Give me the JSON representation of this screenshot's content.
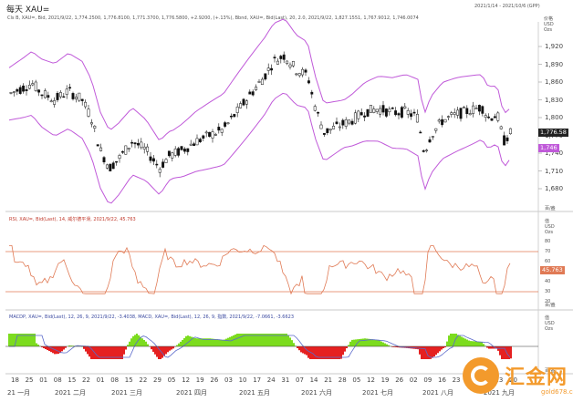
{
  "header": {
    "title": "每天 XAU=",
    "date_range": "2021/1/14 - 2021/10/6 (GPP)",
    "legend_line": "Cls B, XAU=, Bid, 2021/9/22, 1,774.2500, 1,776.8100, 1,771.3700, 1,776.5800, +2.9200, (+.13%), Bbnd, XAU=, Bid(Last), 20, 2.0, 2021/9/22, 1,827.1551, 1,767.9012, 1,746.0074"
  },
  "price_axis": {
    "unit": "价格\nUSD\nOzs",
    "ticks": [
      "1,920",
      "1,890",
      "1,860",
      "1,830",
      "1,800",
      "1,770",
      "1,740",
      "1,710",
      "1,680"
    ],
    "current_price": "1,776.58",
    "lower_band_label": "1,746",
    "footer": "百/盎"
  },
  "rsi": {
    "legend": "RSI, XAU=, Bid(Last), 14, 威尔德平滑, 2021/9/22, 45.763",
    "unit": "值\nUSD\nOzs",
    "ticks": [
      "80",
      "70",
      "60",
      "50",
      "40",
      "30",
      "20"
    ],
    "value_label": "45.763",
    "footer": "百/盎"
  },
  "macd": {
    "legend": "MACDP, XAU=, Bid(Last), 12, 26, 9, 2021/9/22, -3.4038, MACD, XAU=, Bid(Last), 12, 26, 9, 指数, 2021/9/22, -7.0661, -3.6623",
    "unit": "值\nUSD\nOzs",
    "footer": "百/盎"
  },
  "xaxis": {
    "days": [
      "18",
      "25",
      "01",
      "08",
      "15",
      "22",
      "01",
      "08",
      "15",
      "22",
      "29",
      "05",
      "12",
      "19",
      "26",
      "03",
      "10",
      "17",
      "24",
      "31",
      "07",
      "14",
      "21",
      "28",
      "05",
      "12",
      "19",
      "26",
      "02",
      "09",
      "16",
      "23",
      "30",
      "06",
      "13",
      "20"
    ],
    "months": [
      "21 一月",
      "2021 二月",
      "2021 三月",
      "2021 四月",
      "2021 五月",
      "2021 六月",
      "2021 七月",
      "2021 八月",
      "2021 九月"
    ]
  },
  "watermark": {
    "brand": "汇金网",
    "domain": "gold678.com"
  },
  "colors": {
    "up_candle": "#ffffff",
    "down_candle": "#111111",
    "bollinger": "#c05ad9",
    "rsi_line": "#e07a55",
    "rsi_bounds": "#e07a55",
    "macd_pos": "#7cdc1e",
    "macd_neg": "#e52020",
    "macd_signal": "#5b6acb",
    "price_box": "#222222",
    "band_box": "#c05ad9",
    "logo": "#f39a2c"
  }
}
